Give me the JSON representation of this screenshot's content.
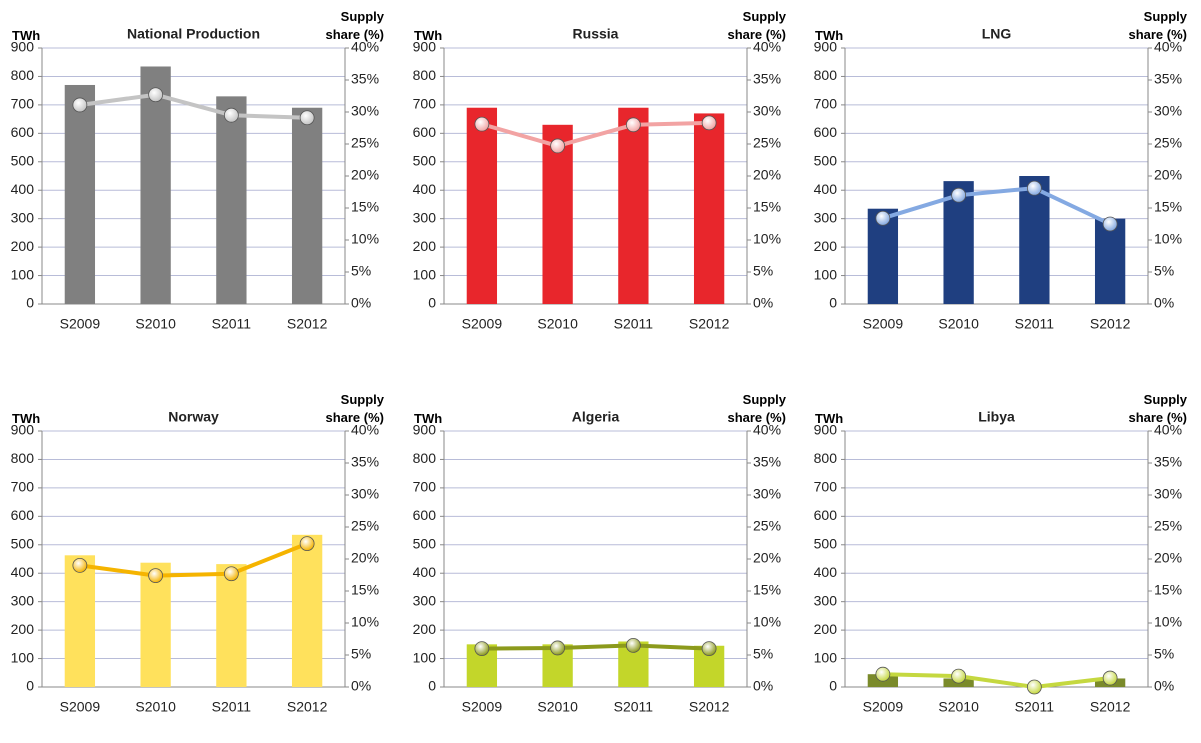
{
  "chart_data": [
    {
      "type": "bar",
      "title": "National Production",
      "ylabel": "TWh",
      "y2label": "Supply share (%)",
      "categories": [
        "S2009",
        "S2010",
        "S2011",
        "S2012"
      ],
      "series": [
        {
          "color": "#808080",
          "values": [
            770,
            835,
            730,
            690
          ]
        },
        {
          "type": "line",
          "axis": "y2",
          "color": "#c4c4c4",
          "values": [
            31.1,
            32.7,
            29.5,
            29.1
          ]
        }
      ],
      "ylim": [
        0,
        900
      ],
      "yticks": [
        0,
        100,
        200,
        300,
        400,
        500,
        600,
        700,
        800,
        900
      ],
      "y2lim": [
        0,
        40
      ],
      "y2ticks": [
        {
          "value": 0,
          "label": "0%"
        },
        {
          "value": 5,
          "label": "5%"
        },
        {
          "value": 10,
          "label": "10%"
        },
        {
          "value": 15,
          "label": "15%"
        },
        {
          "value": 20,
          "label": "20%"
        },
        {
          "value": 25,
          "label": "25%"
        },
        {
          "value": 30,
          "label": "30%"
        },
        {
          "value": 35,
          "label": "35%"
        },
        {
          "value": 40,
          "label": "40%"
        }
      ],
      "grid": true
    },
    {
      "type": "bar",
      "title": "Russia",
      "ylabel": "TWh",
      "y2label": "Supply share (%)",
      "categories": [
        "S2009",
        "S2010",
        "S2011",
        "S2012"
      ],
      "series": [
        {
          "color": "#e8262c",
          "values": [
            690,
            630,
            690,
            670
          ]
        },
        {
          "type": "line",
          "axis": "y2",
          "color": "#f2a3a3",
          "values": [
            28.1,
            24.7,
            28.0,
            28.3
          ]
        }
      ],
      "ylim": [
        0,
        900
      ],
      "yticks": [
        0,
        100,
        200,
        300,
        400,
        500,
        600,
        700,
        800,
        900
      ],
      "y2lim": [
        0,
        40
      ],
      "y2ticks": [
        {
          "value": 0,
          "label": "0%"
        },
        {
          "value": 5,
          "label": "5%"
        },
        {
          "value": 10,
          "label": "10%"
        },
        {
          "value": 15,
          "label": "15%"
        },
        {
          "value": 20,
          "label": "20%"
        },
        {
          "value": 25,
          "label": "25%"
        },
        {
          "value": 30,
          "label": "30%"
        },
        {
          "value": 35,
          "label": "35%"
        },
        {
          "value": 40,
          "label": "40%"
        }
      ],
      "grid": true
    },
    {
      "type": "bar",
      "title": "LNG",
      "ylabel": "TWh",
      "y2label": "Supply share (%)",
      "categories": [
        "S2009",
        "S2010",
        "S2011",
        "S2012"
      ],
      "series": [
        {
          "color": "#1f3f80",
          "values": [
            335,
            432,
            450,
            300
          ]
        },
        {
          "type": "line",
          "axis": "y2",
          "color": "#84a9e2",
          "values": [
            13.4,
            17.0,
            18.1,
            12.5
          ]
        }
      ],
      "ylim": [
        0,
        900
      ],
      "yticks": [
        0,
        100,
        200,
        300,
        400,
        500,
        600,
        700,
        800,
        900
      ],
      "y2lim": [
        0,
        40
      ],
      "y2ticks": [
        {
          "value": 0,
          "label": "0%"
        },
        {
          "value": 5,
          "label": "5%"
        },
        {
          "value": 10,
          "label": "10%"
        },
        {
          "value": 15,
          "label": "15%"
        },
        {
          "value": 20,
          "label": "20%"
        },
        {
          "value": 25,
          "label": "25%"
        },
        {
          "value": 30,
          "label": "30%"
        },
        {
          "value": 35,
          "label": "35%"
        },
        {
          "value": 40,
          "label": "40%"
        }
      ],
      "grid": true
    },
    {
      "type": "bar",
      "title": "Norway",
      "ylabel": "TWh",
      "y2label": "Supply share (%)",
      "categories": [
        "S2009",
        "S2010",
        "S2011",
        "S2012"
      ],
      "series": [
        {
          "color": "#ffe15c",
          "values": [
            463,
            437,
            432,
            535
          ]
        },
        {
          "type": "line",
          "axis": "y2",
          "color": "#f5b400",
          "values": [
            19.0,
            17.4,
            17.7,
            22.4
          ]
        }
      ],
      "ylim": [
        0,
        900
      ],
      "yticks": [
        0,
        100,
        200,
        300,
        400,
        500,
        600,
        700,
        800,
        900
      ],
      "y2lim": [
        0,
        40
      ],
      "y2ticks": [
        {
          "value": 0,
          "label": "0%"
        },
        {
          "value": 5,
          "label": "5%"
        },
        {
          "value": 10,
          "label": "10%"
        },
        {
          "value": 15,
          "label": "15%"
        },
        {
          "value": 20,
          "label": "20%"
        },
        {
          "value": 25,
          "label": "25%"
        },
        {
          "value": 30,
          "label": "30%"
        },
        {
          "value": 35,
          "label": "35%"
        },
        {
          "value": 40,
          "label": "40%"
        }
      ],
      "grid": true
    },
    {
      "type": "bar",
      "title": "Algeria",
      "ylabel": "TWh",
      "y2label": "Supply share (%)",
      "categories": [
        "S2009",
        "S2010",
        "S2011",
        "S2012"
      ],
      "series": [
        {
          "color": "#c3d62a",
          "values": [
            150,
            150,
            160,
            145
          ]
        },
        {
          "type": "line",
          "axis": "y2",
          "color": "#8c9a1c",
          "values": [
            6.0,
            6.1,
            6.5,
            6.0
          ]
        }
      ],
      "ylim": [
        0,
        900
      ],
      "yticks": [
        0,
        100,
        200,
        300,
        400,
        500,
        600,
        700,
        800,
        900
      ],
      "y2lim": [
        0,
        40
      ],
      "y2ticks": [
        {
          "value": 0,
          "label": "0%"
        },
        {
          "value": 5,
          "label": "5%"
        },
        {
          "value": 10,
          "label": "10%"
        },
        {
          "value": 15,
          "label": "15%"
        },
        {
          "value": 20,
          "label": "20%"
        },
        {
          "value": 25,
          "label": "25%"
        },
        {
          "value": 30,
          "label": "30%"
        },
        {
          "value": 35,
          "label": "35%"
        },
        {
          "value": 40,
          "label": "40%"
        }
      ],
      "grid": true
    },
    {
      "type": "bar",
      "title": "Libya",
      "ylabel": "TWh",
      "y2label": "Supply share (%)",
      "categories": [
        "S2009",
        "S2010",
        "S2011",
        "S2012"
      ],
      "series": [
        {
          "color": "#7a8a2a",
          "values": [
            45,
            30,
            0,
            30
          ]
        },
        {
          "type": "line",
          "axis": "y2",
          "color": "#c5d840",
          "values": [
            2.0,
            1.7,
            0,
            1.4
          ]
        }
      ],
      "ylim": [
        0,
        900
      ],
      "yticks": [
        0,
        100,
        200,
        300,
        400,
        500,
        600,
        700,
        800,
        900
      ],
      "y2lim": [
        0,
        40
      ],
      "y2ticks": [
        {
          "value": 0,
          "label": "0%"
        },
        {
          "value": 5,
          "label": "5%"
        },
        {
          "value": 10,
          "label": "10%"
        },
        {
          "value": 15,
          "label": "15%"
        },
        {
          "value": 20,
          "label": "20%"
        },
        {
          "value": 25,
          "label": "25%"
        },
        {
          "value": 30,
          "label": "30%"
        },
        {
          "value": 35,
          "label": "35%"
        },
        {
          "value": 40,
          "label": "40%"
        }
      ],
      "grid": true
    }
  ]
}
